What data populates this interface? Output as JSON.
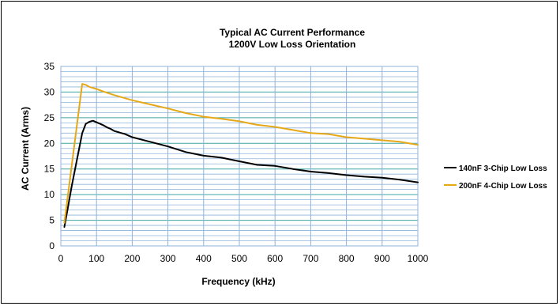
{
  "chart_data": {
    "type": "line",
    "title": "Typical AC Current Performance",
    "subtitle": "1200V Low Loss Orientation",
    "xlabel": "Frequency (kHz)",
    "ylabel": "AC Current (Arms)",
    "xlim": [
      0,
      1000
    ],
    "ylim": [
      0,
      35
    ],
    "xticks": [
      0,
      100,
      200,
      300,
      400,
      500,
      600,
      700,
      800,
      900,
      1000
    ],
    "yticks": [
      0,
      5,
      10,
      15,
      20,
      25,
      30,
      35
    ],
    "grid": true,
    "legend_position": "right",
    "series": [
      {
        "name": "140nF 3-Chip Low Loss",
        "color": "#000000",
        "x": [
          10,
          20,
          30,
          40,
          50,
          60,
          70,
          80,
          90,
          100,
          110,
          120,
          130,
          140,
          150,
          160,
          170,
          180,
          190,
          200,
          250,
          300,
          350,
          400,
          450,
          500,
          550,
          600,
          650,
          700,
          750,
          800,
          850,
          900,
          950,
          1000
        ],
        "y": [
          3.7,
          7.5,
          11.5,
          15,
          18.5,
          22,
          23.8,
          24.2,
          24.4,
          24.1,
          23.8,
          23.5,
          23.1,
          22.8,
          22.4,
          22.2,
          22.0,
          21.8,
          21.5,
          21.2,
          20.3,
          19.4,
          18.3,
          17.6,
          17.2,
          16.5,
          15.8,
          15.6,
          15.0,
          14.5,
          14.2,
          13.8,
          13.5,
          13.3,
          12.9,
          12.4
        ]
      },
      {
        "name": "200nF 4-Chip Low Loss",
        "color": "#E6A817",
        "x": [
          10,
          60,
          70,
          80,
          100,
          120,
          150,
          200,
          250,
          300,
          350,
          400,
          450,
          500,
          550,
          600,
          650,
          700,
          750,
          800,
          850,
          900,
          950,
          1000
        ],
        "y": [
          4.5,
          31.6,
          31.4,
          31.0,
          30.6,
          30.1,
          29.4,
          28.4,
          27.6,
          26.8,
          25.9,
          25.2,
          24.8,
          24.3,
          23.6,
          23.2,
          22.6,
          22.0,
          21.8,
          21.2,
          20.9,
          20.6,
          20.3,
          19.7
        ]
      }
    ]
  }
}
